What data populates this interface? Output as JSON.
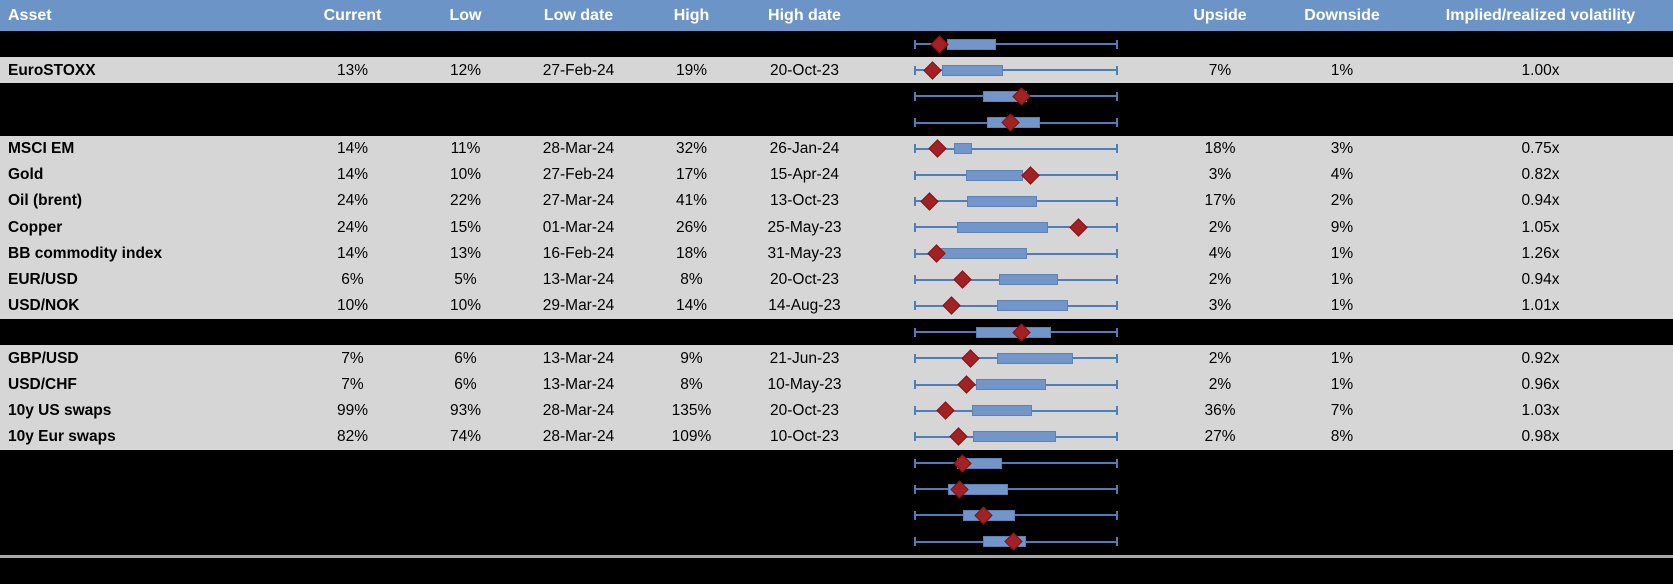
{
  "colors": {
    "header_bg": "#6D94C7",
    "row_bg": "#D6D6D6",
    "hidden_bg": "#000000",
    "box_fill": "#7296C9",
    "whisker": "#4F7DBA",
    "marker": "#A32123",
    "bottom_line": "#A8A8A8",
    "header_text": "#FFFFFF",
    "body_text": "#000000"
  },
  "header": {
    "columns": [
      "Asset",
      "Current",
      "Low",
      "Low date",
      "High",
      "High date",
      "",
      "Upside",
      "Downside",
      "Implied/realized volatility"
    ]
  },
  "rows": [
    {
      "type": "hidden",
      "boxplot": {
        "box_start": 0.16,
        "box_end": 0.402,
        "marker": 0.127
      }
    },
    {
      "type": "data",
      "asset": "EuroSTOXX",
      "current": "13%",
      "low": "12%",
      "low_date": "27-Feb-24",
      "high": "19%",
      "high_date": "20-Oct-23",
      "upside": "7%",
      "downside": "1%",
      "implied_realized": "1.00x",
      "boxplot": {
        "box_start": 0.136,
        "box_end": 0.438,
        "marker": 0.092
      }
    },
    {
      "type": "hidden",
      "boxplot": {
        "box_start": 0.34,
        "box_end": 0.553,
        "marker": 0.528
      }
    },
    {
      "type": "hidden",
      "boxplot": {
        "box_start": 0.356,
        "box_end": 0.618,
        "marker": 0.471
      }
    },
    {
      "type": "data",
      "asset": "MSCI EM",
      "current": "14%",
      "low": "11%",
      "low_date": "28-Mar-24",
      "high": "32%",
      "high_date": "26-Jan-24",
      "upside": "18%",
      "downside": "3%",
      "implied_realized": "0.75x",
      "boxplot": {
        "box_start": 0.196,
        "box_end": 0.284,
        "marker": 0.113
      }
    },
    {
      "type": "data",
      "asset": "Gold",
      "current": "14%",
      "low": "10%",
      "low_date": "27-Feb-24",
      "high": "17%",
      "high_date": "15-Apr-24",
      "upside": "3%",
      "downside": "4%",
      "implied_realized": "0.82x",
      "boxplot": {
        "box_start": 0.255,
        "box_end": 0.533,
        "marker": 0.572
      }
    },
    {
      "type": "data",
      "asset": "Oil (brent)",
      "current": "24%",
      "low": "22%",
      "low_date": "27-Mar-24",
      "high": "41%",
      "high_date": "13-Oct-23",
      "upside": "17%",
      "downside": "2%",
      "implied_realized": "0.94x",
      "boxplot": {
        "box_start": 0.26,
        "box_end": 0.603,
        "marker": 0.078
      }
    },
    {
      "type": "data",
      "asset": "Copper",
      "current": "24%",
      "low": "15%",
      "low_date": "01-Mar-24",
      "high": "26%",
      "high_date": "25-May-23",
      "upside": "2%",
      "downside": "9%",
      "implied_realized": "1.05x",
      "boxplot": {
        "box_start": 0.211,
        "box_end": 0.657,
        "marker": 0.804
      }
    },
    {
      "type": "data",
      "asset": "BB commodity index",
      "current": "14%",
      "low": "13%",
      "low_date": "16-Feb-24",
      "high": "18%",
      "high_date": "31-May-23",
      "upside": "4%",
      "downside": "1%",
      "implied_realized": "1.26x",
      "boxplot": {
        "box_start": 0.127,
        "box_end": 0.556,
        "marker": 0.111
      }
    },
    {
      "type": "data",
      "asset": "EUR/USD",
      "current": "6%",
      "low": "5%",
      "low_date": "13-Mar-24",
      "high": "8%",
      "high_date": "20-Oct-23",
      "upside": "2%",
      "downside": "1%",
      "implied_realized": "0.94x",
      "boxplot": {
        "box_start": 0.418,
        "box_end": 0.707,
        "marker": 0.239
      }
    },
    {
      "type": "data",
      "asset": "USD/NOK",
      "current": "10%",
      "low": "10%",
      "low_date": "29-Mar-24",
      "high": "14%",
      "high_date": "14-Aug-23",
      "upside": "3%",
      "downside": "1%",
      "implied_realized": "1.01x",
      "boxplot": {
        "box_start": 0.408,
        "box_end": 0.756,
        "marker": 0.185
      }
    },
    {
      "type": "hidden",
      "boxplot": {
        "box_start": 0.304,
        "box_end": 0.672,
        "marker": 0.528
      }
    },
    {
      "type": "data",
      "asset": "GBP/USD",
      "current": "7%",
      "low": "6%",
      "low_date": "13-Mar-24",
      "high": "9%",
      "high_date": "21-Jun-23",
      "upside": "2%",
      "downside": "1%",
      "implied_realized": "0.92x",
      "boxplot": {
        "box_start": 0.405,
        "box_end": 0.781,
        "marker": 0.278
      }
    },
    {
      "type": "data",
      "asset": "USD/CHF",
      "current": "7%",
      "low": "6%",
      "low_date": "13-Mar-24",
      "high": "8%",
      "high_date": "10-May-23",
      "upside": "2%",
      "downside": "1%",
      "implied_realized": "0.96x",
      "boxplot": {
        "box_start": 0.304,
        "box_end": 0.647,
        "marker": 0.258
      }
    },
    {
      "type": "data",
      "asset": "10y US swaps",
      "current": "99%",
      "low": "93%",
      "low_date": "28-Mar-24",
      "high": "135%",
      "high_date": "20-Oct-23",
      "upside": "36%",
      "downside": "7%",
      "implied_realized": "1.03x",
      "boxplot": {
        "box_start": 0.286,
        "box_end": 0.577,
        "marker": 0.152
      }
    },
    {
      "type": "data",
      "asset": "10y Eur swaps",
      "current": "82%",
      "low": "74%",
      "low_date": "28-Mar-24",
      "high": "109%",
      "high_date": "10-Oct-23",
      "upside": "27%",
      "downside": "8%",
      "implied_realized": "0.98x",
      "boxplot": {
        "box_start": 0.288,
        "box_end": 0.696,
        "marker": 0.217
      }
    },
    {
      "type": "hidden",
      "boxplot": {
        "box_start": 0.209,
        "box_end": 0.43,
        "marker": 0.239
      }
    },
    {
      "type": "hidden",
      "boxplot": {
        "box_start": 0.168,
        "box_end": 0.459,
        "marker": 0.222
      }
    },
    {
      "type": "hidden",
      "boxplot": {
        "box_start": 0.239,
        "box_end": 0.495,
        "marker": 0.34
      }
    },
    {
      "type": "hidden",
      "boxplot": {
        "box_start": 0.337,
        "box_end": 0.549,
        "marker": 0.487
      }
    }
  ]
}
